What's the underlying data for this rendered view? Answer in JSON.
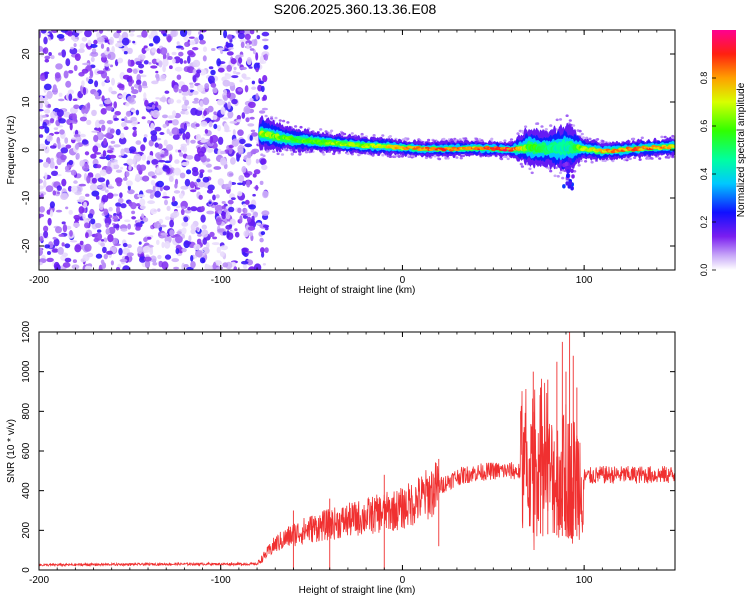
{
  "title": "S206.2025.360.13.36.E08",
  "colorbar": {
    "label": "Normalized spectral amplitude",
    "ticks": [
      0.0,
      0.2,
      0.4,
      0.6,
      0.8
    ],
    "tick_labels": [
      "0.0",
      "0.2",
      "0.4",
      "0.6",
      "0.8"
    ],
    "range": [
      0,
      1
    ]
  },
  "chart_data": [
    {
      "type": "heatmap",
      "name": "spectrogram",
      "xlabel": "Height of straight line (km)",
      "ylabel": "Frequency (Hz)",
      "xlim": [
        -200,
        150
      ],
      "ylim": [
        -25,
        25
      ],
      "xticks": [
        -200,
        -100,
        0,
        100
      ],
      "xtick_labels": [
        "-200",
        "-100",
        "0",
        "100"
      ],
      "yticks": [
        -20,
        -10,
        0,
        10,
        20
      ],
      "ytick_labels": [
        "-20",
        "-10",
        "0",
        "10",
        "20"
      ],
      "noise_region_km": [
        -200,
        -78
      ],
      "signal_onset_km": -78,
      "ridge": {
        "x": [
          -78,
          -70,
          -60,
          -50,
          -40,
          -30,
          -20,
          -10,
          0,
          10,
          20,
          30,
          40,
          50,
          60,
          70,
          80,
          90,
          100,
          110,
          120,
          130,
          140,
          150
        ],
        "freq_hz": [
          3.5,
          2.8,
          2.2,
          1.8,
          1.5,
          1.2,
          0.9,
          0.8,
          0.5,
          0.3,
          0.2,
          0.3,
          0.4,
          0.3,
          0.1,
          0.6,
          0.2,
          0.5,
          0.3,
          -0.3,
          0.0,
          0.3,
          0.5,
          0.8
        ],
        "amplitude": [
          0.7,
          0.65,
          0.6,
          0.6,
          0.65,
          0.7,
          0.7,
          0.75,
          0.8,
          0.85,
          0.9,
          0.85,
          0.85,
          0.9,
          0.95,
          0.6,
          0.5,
          0.45,
          0.7,
          0.8,
          0.85,
          0.85,
          0.85,
          0.8
        ],
        "bandwidth_hz": [
          3.0,
          2.5,
          2.0,
          1.8,
          1.6,
          1.5,
          1.5,
          1.4,
          1.3,
          1.3,
          1.3,
          1.3,
          1.3,
          1.3,
          1.3,
          3.5,
          3.0,
          4.5,
          1.8,
          1.5,
          1.5,
          1.5,
          1.5,
          1.5
        ]
      }
    },
    {
      "type": "line",
      "name": "snr",
      "xlabel": "Height of straight line (km)",
      "ylabel": "SNR (10 * v/v)",
      "xlim": [
        -200,
        150
      ],
      "ylim": [
        0,
        1200
      ],
      "xticks": [
        -200,
        -100,
        0,
        100
      ],
      "xtick_labels": [
        "-200",
        "-100",
        "0",
        "100"
      ],
      "yticks": [
        0,
        200,
        400,
        600,
        800,
        1000,
        1200
      ],
      "ytick_labels": [
        "0",
        "200",
        "400",
        "600",
        "800",
        "1000",
        "1200"
      ],
      "color": "#f03030",
      "baseline_x": [
        -200,
        -160,
        -120,
        -80,
        -70,
        -60,
        -50,
        -40,
        -30,
        -20,
        -10,
        0,
        10,
        20,
        30,
        40,
        50,
        60,
        70,
        80,
        90,
        100,
        110,
        120,
        130,
        140,
        150
      ],
      "baseline_y": [
        25,
        28,
        30,
        30,
        130,
        180,
        210,
        230,
        250,
        270,
        290,
        310,
        360,
        420,
        470,
        490,
        500,
        500,
        490,
        480,
        470,
        470,
        480,
        480,
        480,
        480,
        480
      ],
      "spikes": [
        {
          "x": 72,
          "y": 1000
        },
        {
          "x": 76,
          "y": 920
        },
        {
          "x": 80,
          "y": 960
        },
        {
          "x": 85,
          "y": 1050
        },
        {
          "x": 88,
          "y": 1150
        },
        {
          "x": 90,
          "y": 1000
        },
        {
          "x": 92,
          "y": 1210
        },
        {
          "x": 94,
          "y": 1080
        },
        {
          "x": 96,
          "y": 920
        },
        {
          "x": 20,
          "y": 560
        },
        {
          "x": -10,
          "y": 480
        },
        {
          "x": -40,
          "y": 360
        },
        {
          "x": -60,
          "y": 300
        }
      ]
    }
  ]
}
